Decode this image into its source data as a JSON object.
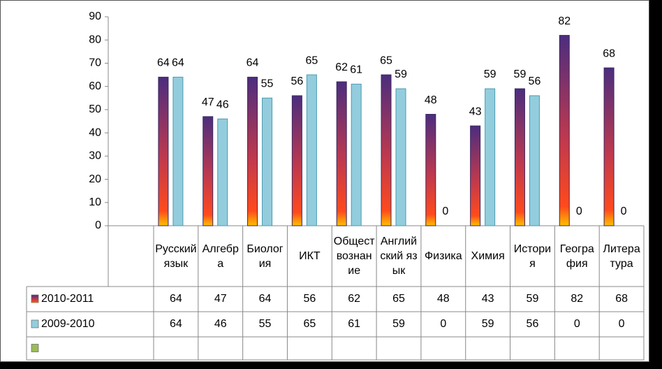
{
  "chart_data": {
    "type": "bar",
    "categories": [
      "Русский язык",
      "Алгебра",
      "Биология",
      "ИКТ",
      "Обществознание",
      "Английский язык",
      "Физика",
      "Химия",
      "История",
      "География",
      "Литература"
    ],
    "series": [
      {
        "name": "2010-2011",
        "color": "#c0504d",
        "values": [
          64,
          47,
          64,
          56,
          62,
          65,
          48,
          43,
          59,
          82,
          68
        ]
      },
      {
        "name": "2009-2010",
        "color": "#93cddd",
        "values": [
          64,
          46,
          55,
          65,
          61,
          59,
          0,
          59,
          56,
          0,
          0
        ]
      },
      {
        "color": "#9bbb59",
        "values": [
          null,
          null,
          null,
          null,
          null,
          null,
          null,
          null,
          null,
          null,
          null
        ]
      }
    ],
    "ylim": [
      0,
      90
    ],
    "yticks": [
      0,
      10,
      20,
      30,
      40,
      50,
      60,
      70,
      80,
      90
    ],
    "grid": false
  }
}
